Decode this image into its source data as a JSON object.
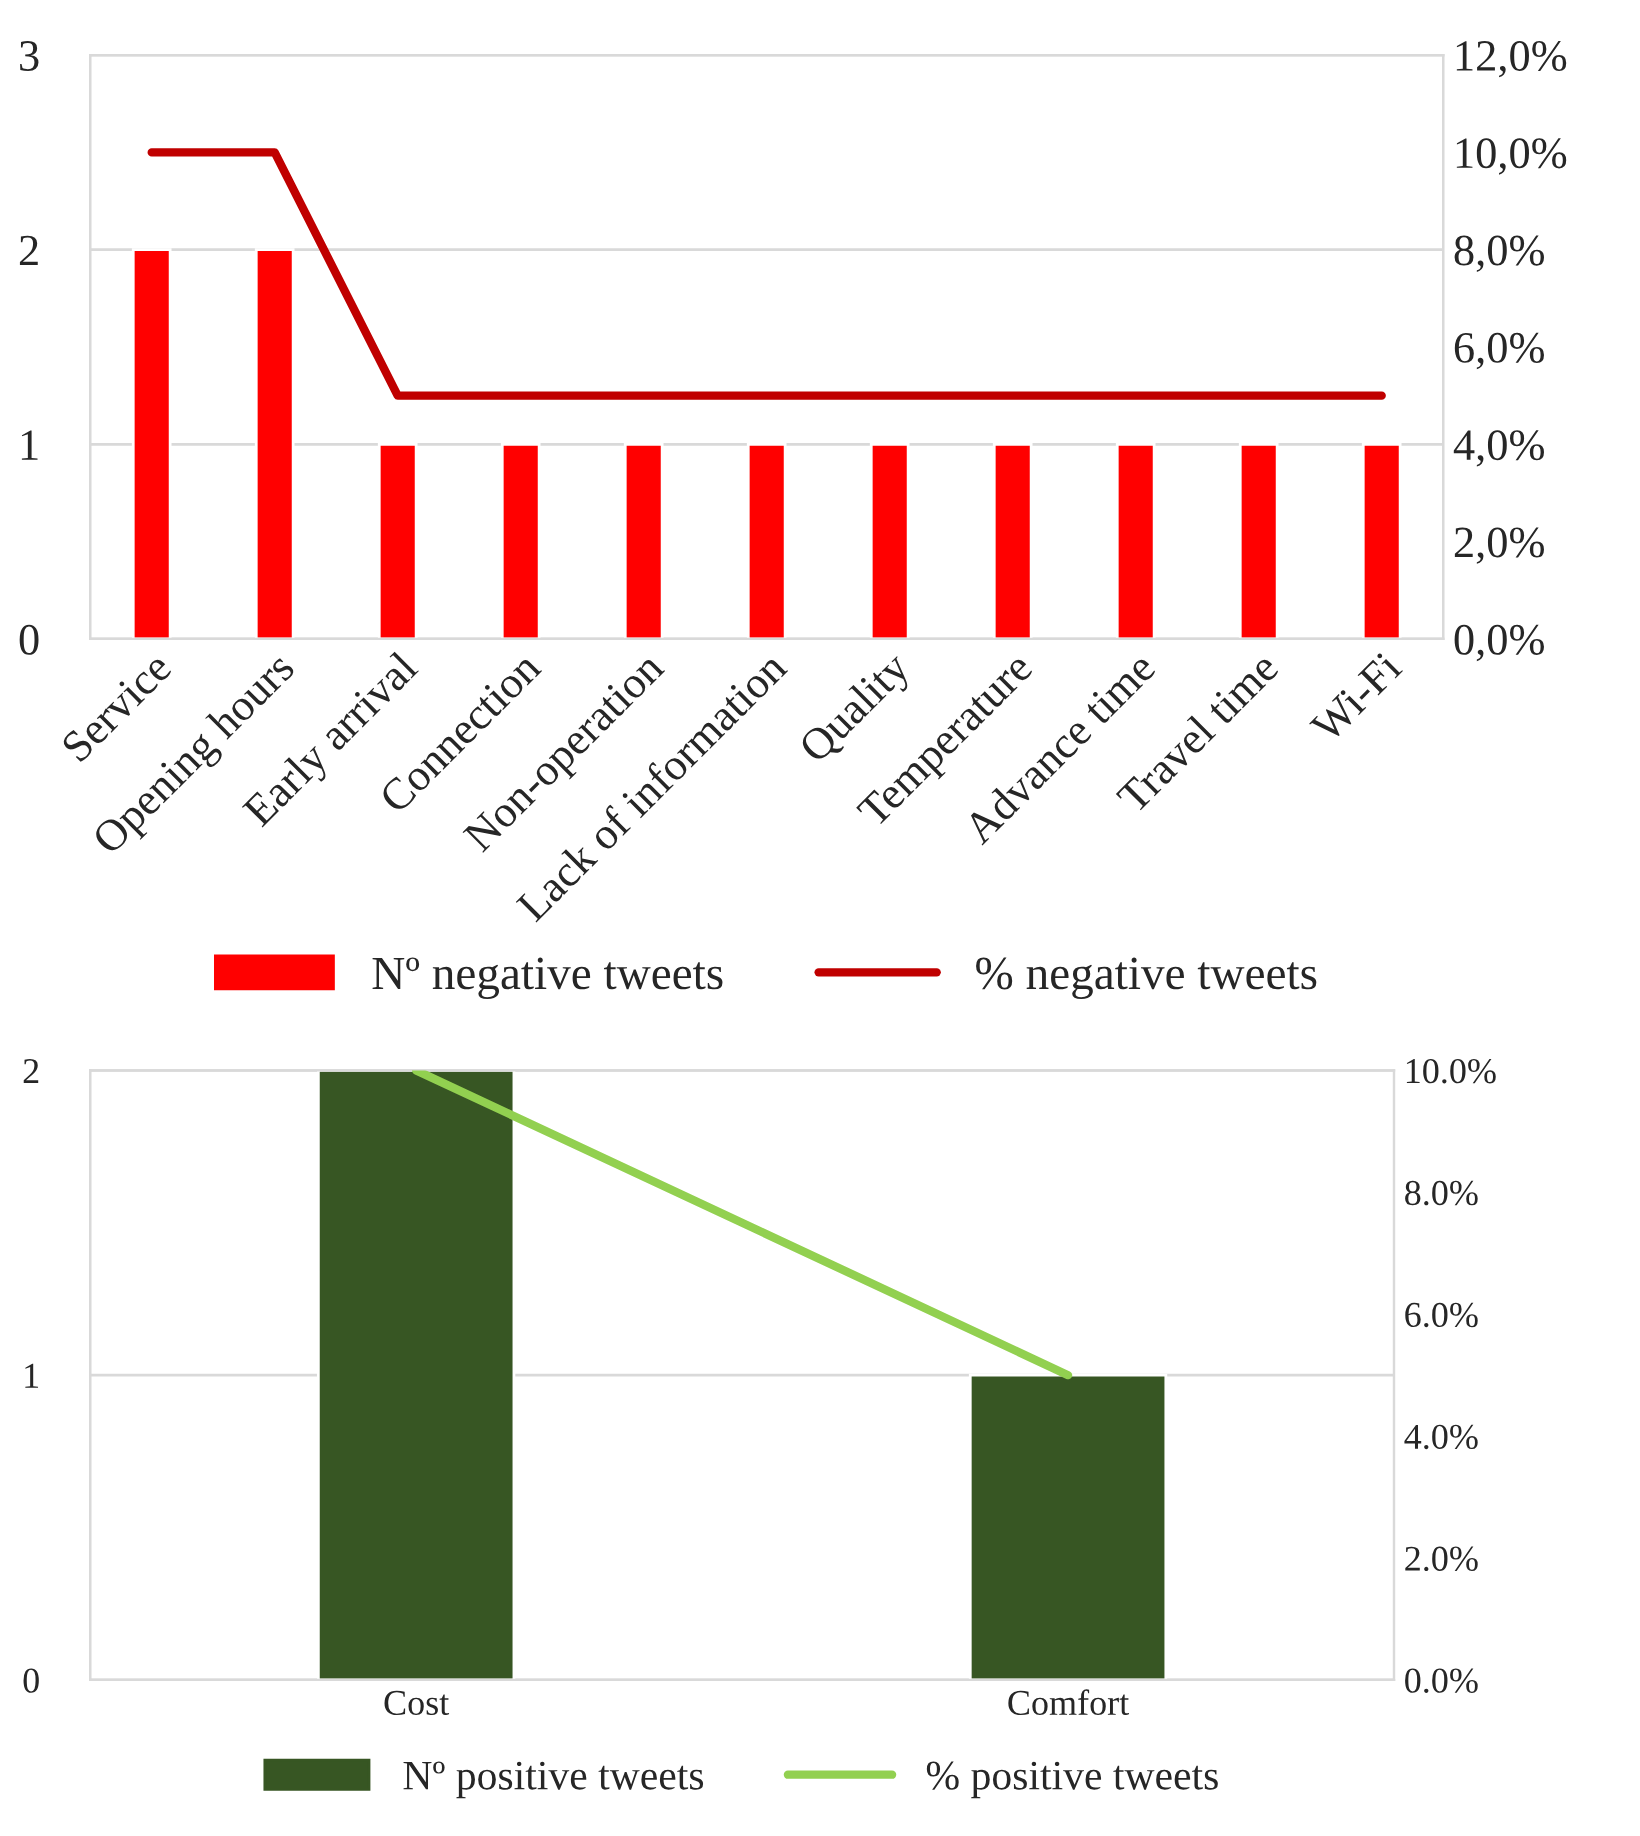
{
  "chart_data": [
    {
      "type": "bar",
      "categories": [
        "Service",
        "Opening hours",
        "Early arrival",
        "Connection",
        "Non-operation",
        "Lack of information",
        "Quality",
        "Temperature",
        "Advance time",
        "Travel time",
        "Wi-Fi"
      ],
      "series": [
        {
          "name": "Nº negative tweets",
          "color": "#ff0000",
          "values": [
            2,
            2,
            1,
            1,
            1,
            1,
            1,
            1,
            1,
            1,
            1
          ]
        },
        {
          "name": "% negative tweets",
          "type": "line",
          "axis": "y2",
          "color": "#c00000",
          "values": [
            10,
            10,
            5,
            5,
            5,
            5,
            5,
            5,
            5,
            5,
            5
          ]
        }
      ],
      "ylim": [
        0,
        3
      ],
      "yticks": [
        0,
        1,
        2,
        3
      ],
      "y2lim": [
        0,
        12
      ],
      "y2ticks": [
        {
          "value": 0,
          "label": "0,0%"
        },
        {
          "value": 2,
          "label": "2,0%"
        },
        {
          "value": 4,
          "label": "4,0%"
        },
        {
          "value": 6,
          "label": "6,0%"
        },
        {
          "value": 8,
          "label": "8,0%"
        },
        {
          "value": 10,
          "label": "10,0%"
        },
        {
          "value": 12,
          "label": "12,0%"
        }
      ],
      "grid": "y",
      "legend": "bottom",
      "marker": "none"
    },
    {
      "type": "bar",
      "categories": [
        "Cost",
        "Comfort"
      ],
      "series": [
        {
          "name": "Nº positive tweets",
          "color": "#375623",
          "values": [
            2,
            1
          ]
        },
        {
          "name": "% positive tweets",
          "type": "line",
          "axis": "y2",
          "color": "#92d050",
          "values": [
            10,
            5
          ]
        }
      ],
      "ylim": [
        0,
        2
      ],
      "yticks": [
        0,
        1,
        2
      ],
      "y2lim": [
        0,
        10
      ],
      "y2ticks": [
        {
          "value": 0,
          "label": "0.0%"
        },
        {
          "value": 2,
          "label": "2.0%"
        },
        {
          "value": 4,
          "label": "4.0%"
        },
        {
          "value": 6,
          "label": "6.0%"
        },
        {
          "value": 8,
          "label": "8.0%"
        },
        {
          "value": 10,
          "label": "10.0%"
        }
      ],
      "grid": "y",
      "legend": "bottom",
      "marker": "none"
    }
  ]
}
